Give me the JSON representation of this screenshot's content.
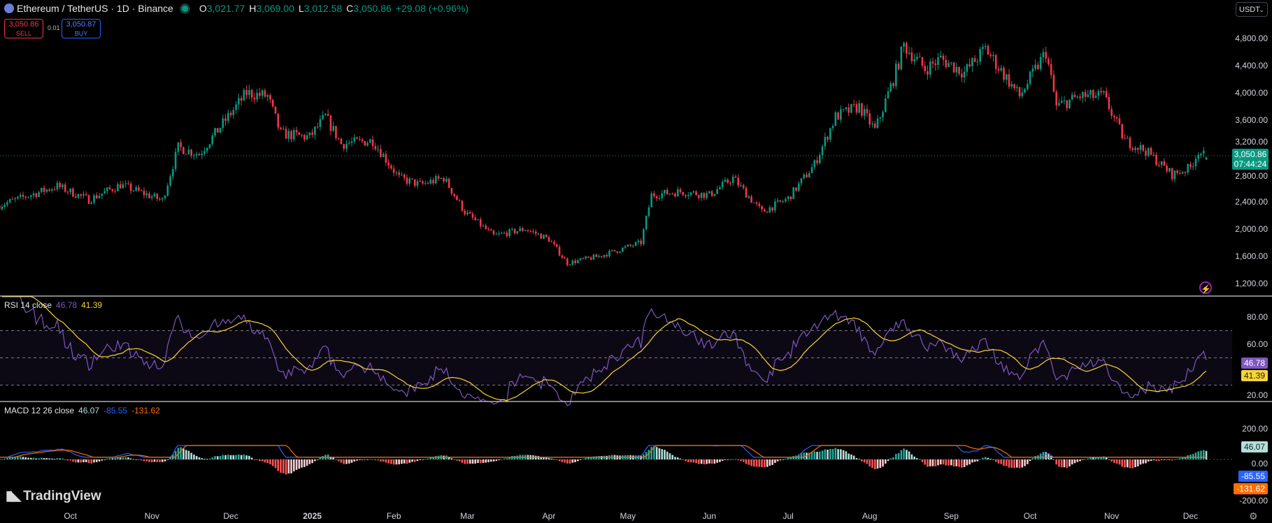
{
  "header": {
    "title": "Ethereum / TetherUS · 1D · Binance",
    "open_label": "O",
    "open": "3,021.77",
    "high_label": "H",
    "high": "3,069.00",
    "low_label": "L",
    "low": "3,012.58",
    "close_label": "C",
    "close": "3,050.86",
    "change": "+29.08 (+0.96%)"
  },
  "trade": {
    "sell_price": "3,050.86",
    "sell_label": "SELL",
    "spread": "0.01",
    "buy_price": "3,050.87",
    "buy_label": "BUY"
  },
  "currency_select": "USDT",
  "price_axis": [
    "4,800.00",
    "4,400.00",
    "4,000.00",
    "3,600.00",
    "3,200.00",
    "2,800.00",
    "2,400.00",
    "2,000.00",
    "1,600.00",
    "1,200.00"
  ],
  "last_price": {
    "value": "3,050.86",
    "countdown": "07:44:24"
  },
  "rsi": {
    "name": "RSI 14 close",
    "value": "46.78",
    "ma": "41.39",
    "axis": [
      "80.00",
      "60.00",
      "20.00"
    ],
    "colors": {
      "rsi": "#7e57c2",
      "ma": "#f7d435"
    }
  },
  "macd": {
    "name": "MACD 12 26 close",
    "hist": "46.07",
    "macd": "-85.55",
    "signal": "-131.62",
    "axis": [
      "200.00",
      "0.00",
      "-200.00"
    ],
    "colors": {
      "hist": "#b2dfdb",
      "macd": "#2962ff",
      "signal": "#ff6d00"
    }
  },
  "time_axis": [
    "Oct",
    "Nov",
    "Dec",
    "2025",
    "Feb",
    "Mar",
    "Apr",
    "May",
    "Jun",
    "Jul",
    "Aug",
    "Sep",
    "Oct",
    "Nov",
    "Dec"
  ],
  "brand": "TradingView",
  "colors": {
    "up": "#089981",
    "down": "#f23645"
  },
  "chart_data": {
    "type": "candlestick",
    "title": "Ethereum / TetherUS · 1D · Binance",
    "ylim": [
      1200,
      4900
    ],
    "approx_closes": [
      [
        "2024-09-04",
        2350
      ],
      [
        "2024-09-26",
        2630
      ],
      [
        "2024-10-08",
        2430
      ],
      [
        "2024-10-20",
        2650
      ],
      [
        "2024-11-05",
        2420
      ],
      [
        "2024-11-11",
        3200
      ],
      [
        "2024-11-19",
        3100
      ],
      [
        "2024-12-01",
        3700
      ],
      [
        "2024-12-07",
        4000
      ],
      [
        "2024-12-15",
        3950
      ],
      [
        "2024-12-20",
        3400
      ],
      [
        "2024-12-31",
        3350
      ],
      [
        "2025-01-06",
        3650
      ],
      [
        "2025-01-12",
        3250
      ],
      [
        "2025-01-24",
        3300
      ],
      [
        "2025-02-03",
        2750
      ],
      [
        "2025-02-11",
        2650
      ],
      [
        "2025-02-20",
        2750
      ],
      [
        "2025-02-28",
        2250
      ],
      [
        "2025-03-11",
        1900
      ],
      [
        "2025-03-23",
        2000
      ],
      [
        "2025-04-01",
        1850
      ],
      [
        "2025-04-08",
        1500
      ],
      [
        "2025-04-20",
        1600
      ],
      [
        "2025-05-06",
        1800
      ],
      [
        "2025-05-10",
        2500
      ],
      [
        "2025-05-21",
        2550
      ],
      [
        "2025-06-01",
        2500
      ],
      [
        "2025-06-10",
        2750
      ],
      [
        "2025-06-21",
        2250
      ],
      [
        "2025-07-01",
        2450
      ],
      [
        "2025-07-11",
        2950
      ],
      [
        "2025-07-19",
        3650
      ],
      [
        "2025-07-28",
        3800
      ],
      [
        "2025-08-03",
        3450
      ],
      [
        "2025-08-10",
        4200
      ],
      [
        "2025-08-14",
        4700
      ],
      [
        "2025-08-22",
        4350
      ],
      [
        "2025-08-28",
        4500
      ],
      [
        "2025-09-06",
        4300
      ],
      [
        "2025-09-14",
        4650
      ],
      [
        "2025-09-27",
        3950
      ],
      [
        "2025-10-07",
        4600
      ],
      [
        "2025-10-11",
        3800
      ],
      [
        "2025-10-20",
        3950
      ],
      [
        "2025-10-29",
        3950
      ],
      [
        "2025-11-06",
        3300
      ],
      [
        "2025-11-14",
        3150
      ],
      [
        "2025-11-24",
        2800
      ],
      [
        "2025-12-01",
        2900
      ],
      [
        "2025-12-04",
        3150
      ],
      [
        "2025-12-07",
        3050.86
      ]
    ],
    "last_bar": {
      "open": 3021.77,
      "high": 3069.0,
      "low": 3012.58,
      "close": 3050.86
    }
  }
}
